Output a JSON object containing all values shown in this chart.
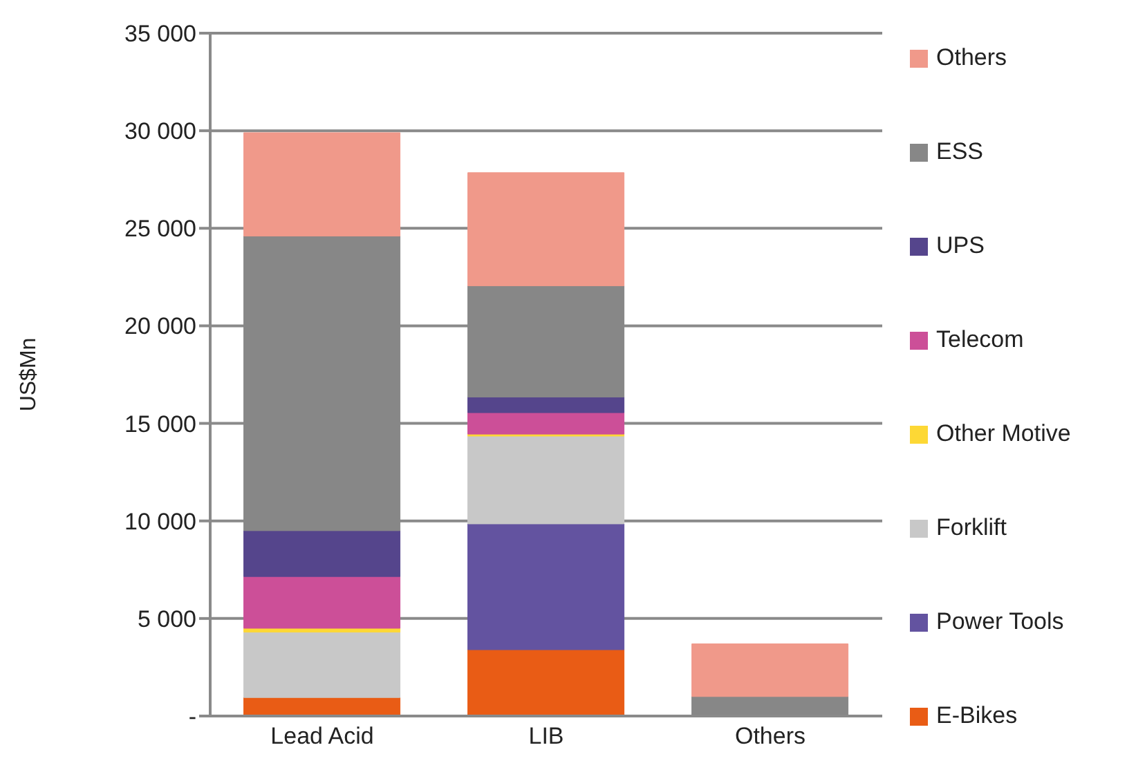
{
  "chart_data": {
    "type": "bar",
    "ylabel": "US$Mn",
    "categories": [
      "Lead Acid",
      "LIB",
      "Others"
    ],
    "stacked": true,
    "series": [
      {
        "name": "E-Bikes",
        "color": "#e95c15",
        "values": [
          950,
          3400,
          0
        ]
      },
      {
        "name": "Power Tools",
        "color": "#6353a0",
        "values": [
          0,
          6450,
          0
        ]
      },
      {
        "name": "Forklift",
        "color": "#c8c8c8",
        "values": [
          3350,
          4500,
          0
        ]
      },
      {
        "name": "Other Motive",
        "color": "#fdd835",
        "values": [
          200,
          100,
          0
        ]
      },
      {
        "name": "Telecom",
        "color": "#cc4f98",
        "values": [
          2650,
          1100,
          0
        ]
      },
      {
        "name": "UPS",
        "color": "#55458c",
        "values": [
          2350,
          800,
          0
        ]
      },
      {
        "name": "ESS",
        "color": "#878787",
        "values": [
          15100,
          5700,
          1000
        ]
      },
      {
        "name": "Others",
        "color": "#f0998a",
        "values": [
          5300,
          5800,
          2700
        ]
      }
    ],
    "ylim": [
      0,
      35000
    ],
    "yticks": [
      {
        "value": 0,
        "label": "-"
      },
      {
        "value": 5000,
        "label": "5 000"
      },
      {
        "value": 10000,
        "label": "10 000"
      },
      {
        "value": 15000,
        "label": "15 000"
      },
      {
        "value": 20000,
        "label": "20 000"
      },
      {
        "value": 25000,
        "label": "25 000"
      },
      {
        "value": 30000,
        "label": "30 000"
      },
      {
        "value": 35000,
        "label": "35 000"
      }
    ],
    "grid": "y",
    "legend": "right"
  }
}
